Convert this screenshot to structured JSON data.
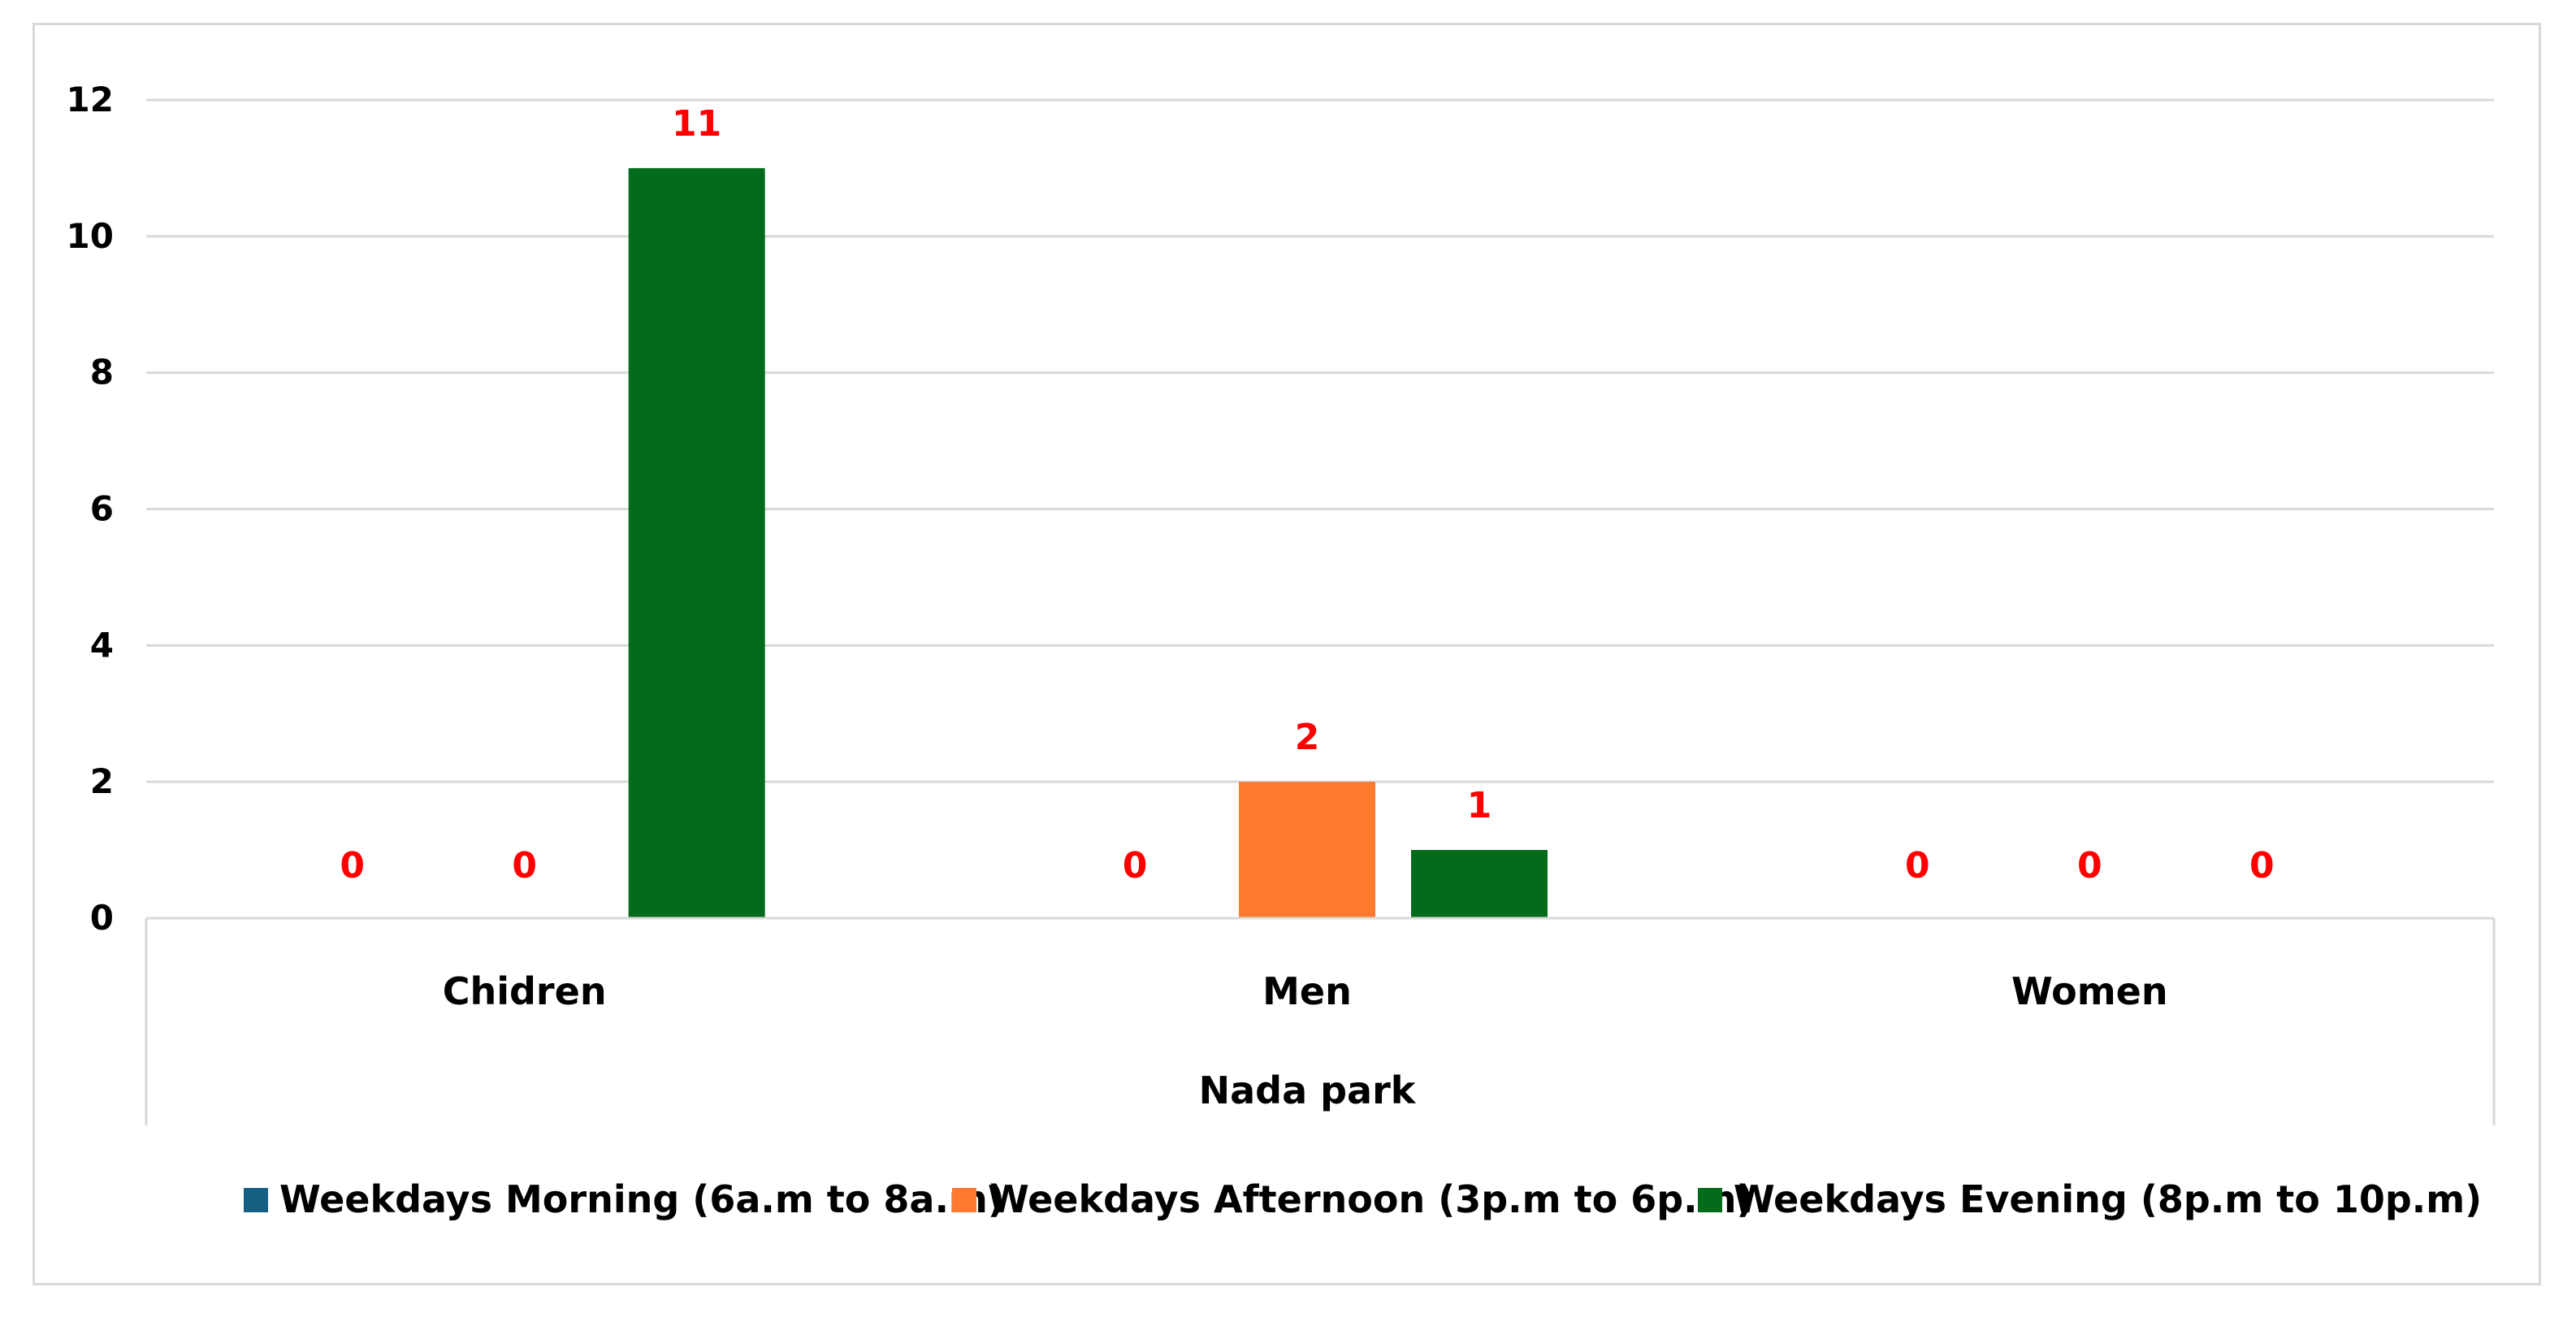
{
  "chart_data": {
    "type": "bar",
    "group_label": "Nada park",
    "categories": [
      "Chidren",
      "Men",
      "Women"
    ],
    "series": [
      {
        "name": "Weekdays Morning (6a.m to 8a.m)",
        "color": "#156082",
        "values": [
          0,
          0,
          0
        ]
      },
      {
        "name": "Weekdays Afternoon (3p.m to 6p.m)",
        "color": "#ff7a2e",
        "values": [
          0,
          2,
          0
        ]
      },
      {
        "name": "Weekdays Evening (8p.m to 10p.m)",
        "color": "#036b1a",
        "values": [
          11,
          1,
          0
        ]
      }
    ],
    "ylim": [
      0,
      12
    ],
    "yticks": [
      0,
      2,
      4,
      6,
      8,
      10,
      12
    ],
    "grid": true,
    "legend_position": "bottom",
    "data_label_color": "#ff0000"
  }
}
